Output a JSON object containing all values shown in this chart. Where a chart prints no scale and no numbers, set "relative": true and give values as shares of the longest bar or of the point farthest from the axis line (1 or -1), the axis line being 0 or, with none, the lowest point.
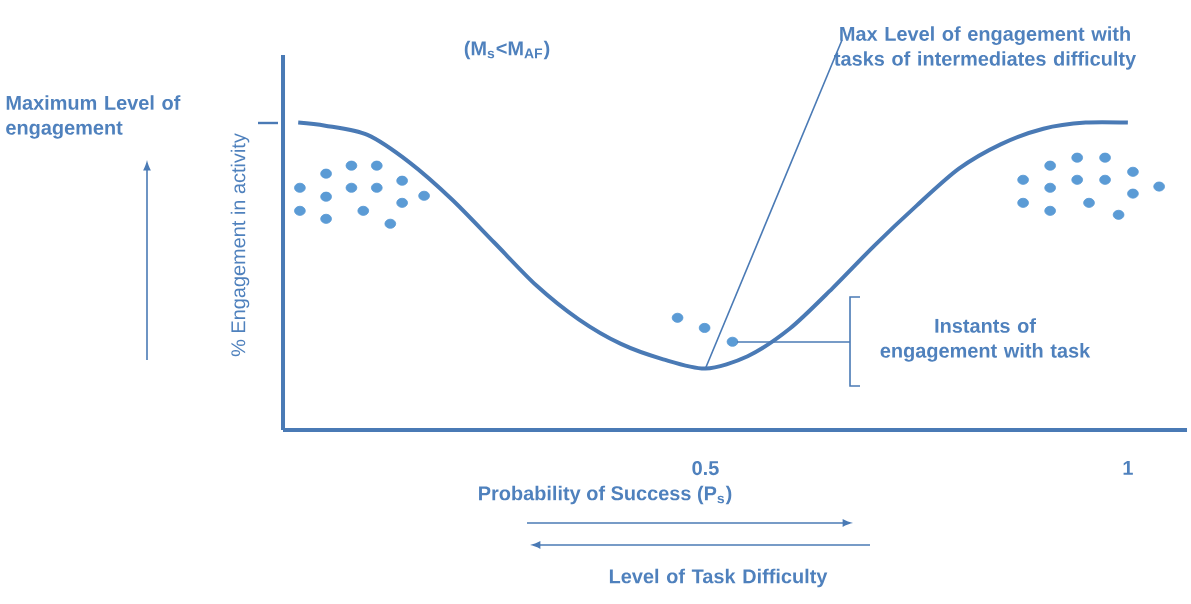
{
  "chart_data": {
    "type": "line",
    "relative": true,
    "xlabel": "Probability of Success (P$_{s}$)",
    "ylabel": "% Engagement in activity",
    "xlim": [
      0,
      1.07
    ],
    "xticks": [
      0.5,
      1
    ],
    "legend": false,
    "grid": false,
    "annotations": [
      "(M$_{s}$<M$_{AF}$)",
      "Maximum Level of engagement",
      {
        "text": "Max Level of engagement with tasks of intermediates difficulty",
        "x": 0.5,
        "y": 0.2
      },
      "Instants of engagement with task",
      "Level of Task Difficulty"
    ],
    "series": [
      {
        "color": "#4a7ab5",
        "x": [
          0.018,
          0.05,
          0.1,
          0.15,
          0.2,
          0.25,
          0.3,
          0.35,
          0.4,
          0.45,
          0.5,
          0.55,
          0.6,
          0.65,
          0.7,
          0.75,
          0.8,
          0.85,
          0.9,
          0.95,
          1.0
        ],
        "values": [
          1.0,
          0.99,
          0.96,
          0.87,
          0.75,
          0.61,
          0.47,
          0.36,
          0.28,
          0.23,
          0.2,
          0.24,
          0.33,
          0.46,
          0.6,
          0.73,
          0.85,
          0.93,
          0.98,
          1.0,
          1.0
        ]
      },
      {
        "type": "scatter",
        "marker": "circle",
        "color": "#5b9bd5",
        "x": [
          0.02,
          0.051,
          0.081,
          0.111,
          0.141,
          0.02,
          0.051,
          0.081,
          0.111,
          0.141,
          0.167,
          0.051,
          0.095,
          0.127,
          0.467,
          0.499,
          0.532,
          0.876,
          0.908,
          0.94,
          0.973,
          1.006,
          1.037,
          0.876,
          0.908,
          0.94,
          0.973,
          1.006,
          0.908,
          0.954,
          0.989
        ],
        "values": [
          0.788,
          0.834,
          0.86,
          0.86,
          0.811,
          0.713,
          0.759,
          0.788,
          0.788,
          0.739,
          0.762,
          0.687,
          0.713,
          0.671,
          0.365,
          0.332,
          0.287,
          0.814,
          0.86,
          0.886,
          0.886,
          0.84,
          0.792,
          0.739,
          0.788,
          0.814,
          0.814,
          0.769,
          0.713,
          0.739,
          0.7
        ]
      }
    ]
  }
}
